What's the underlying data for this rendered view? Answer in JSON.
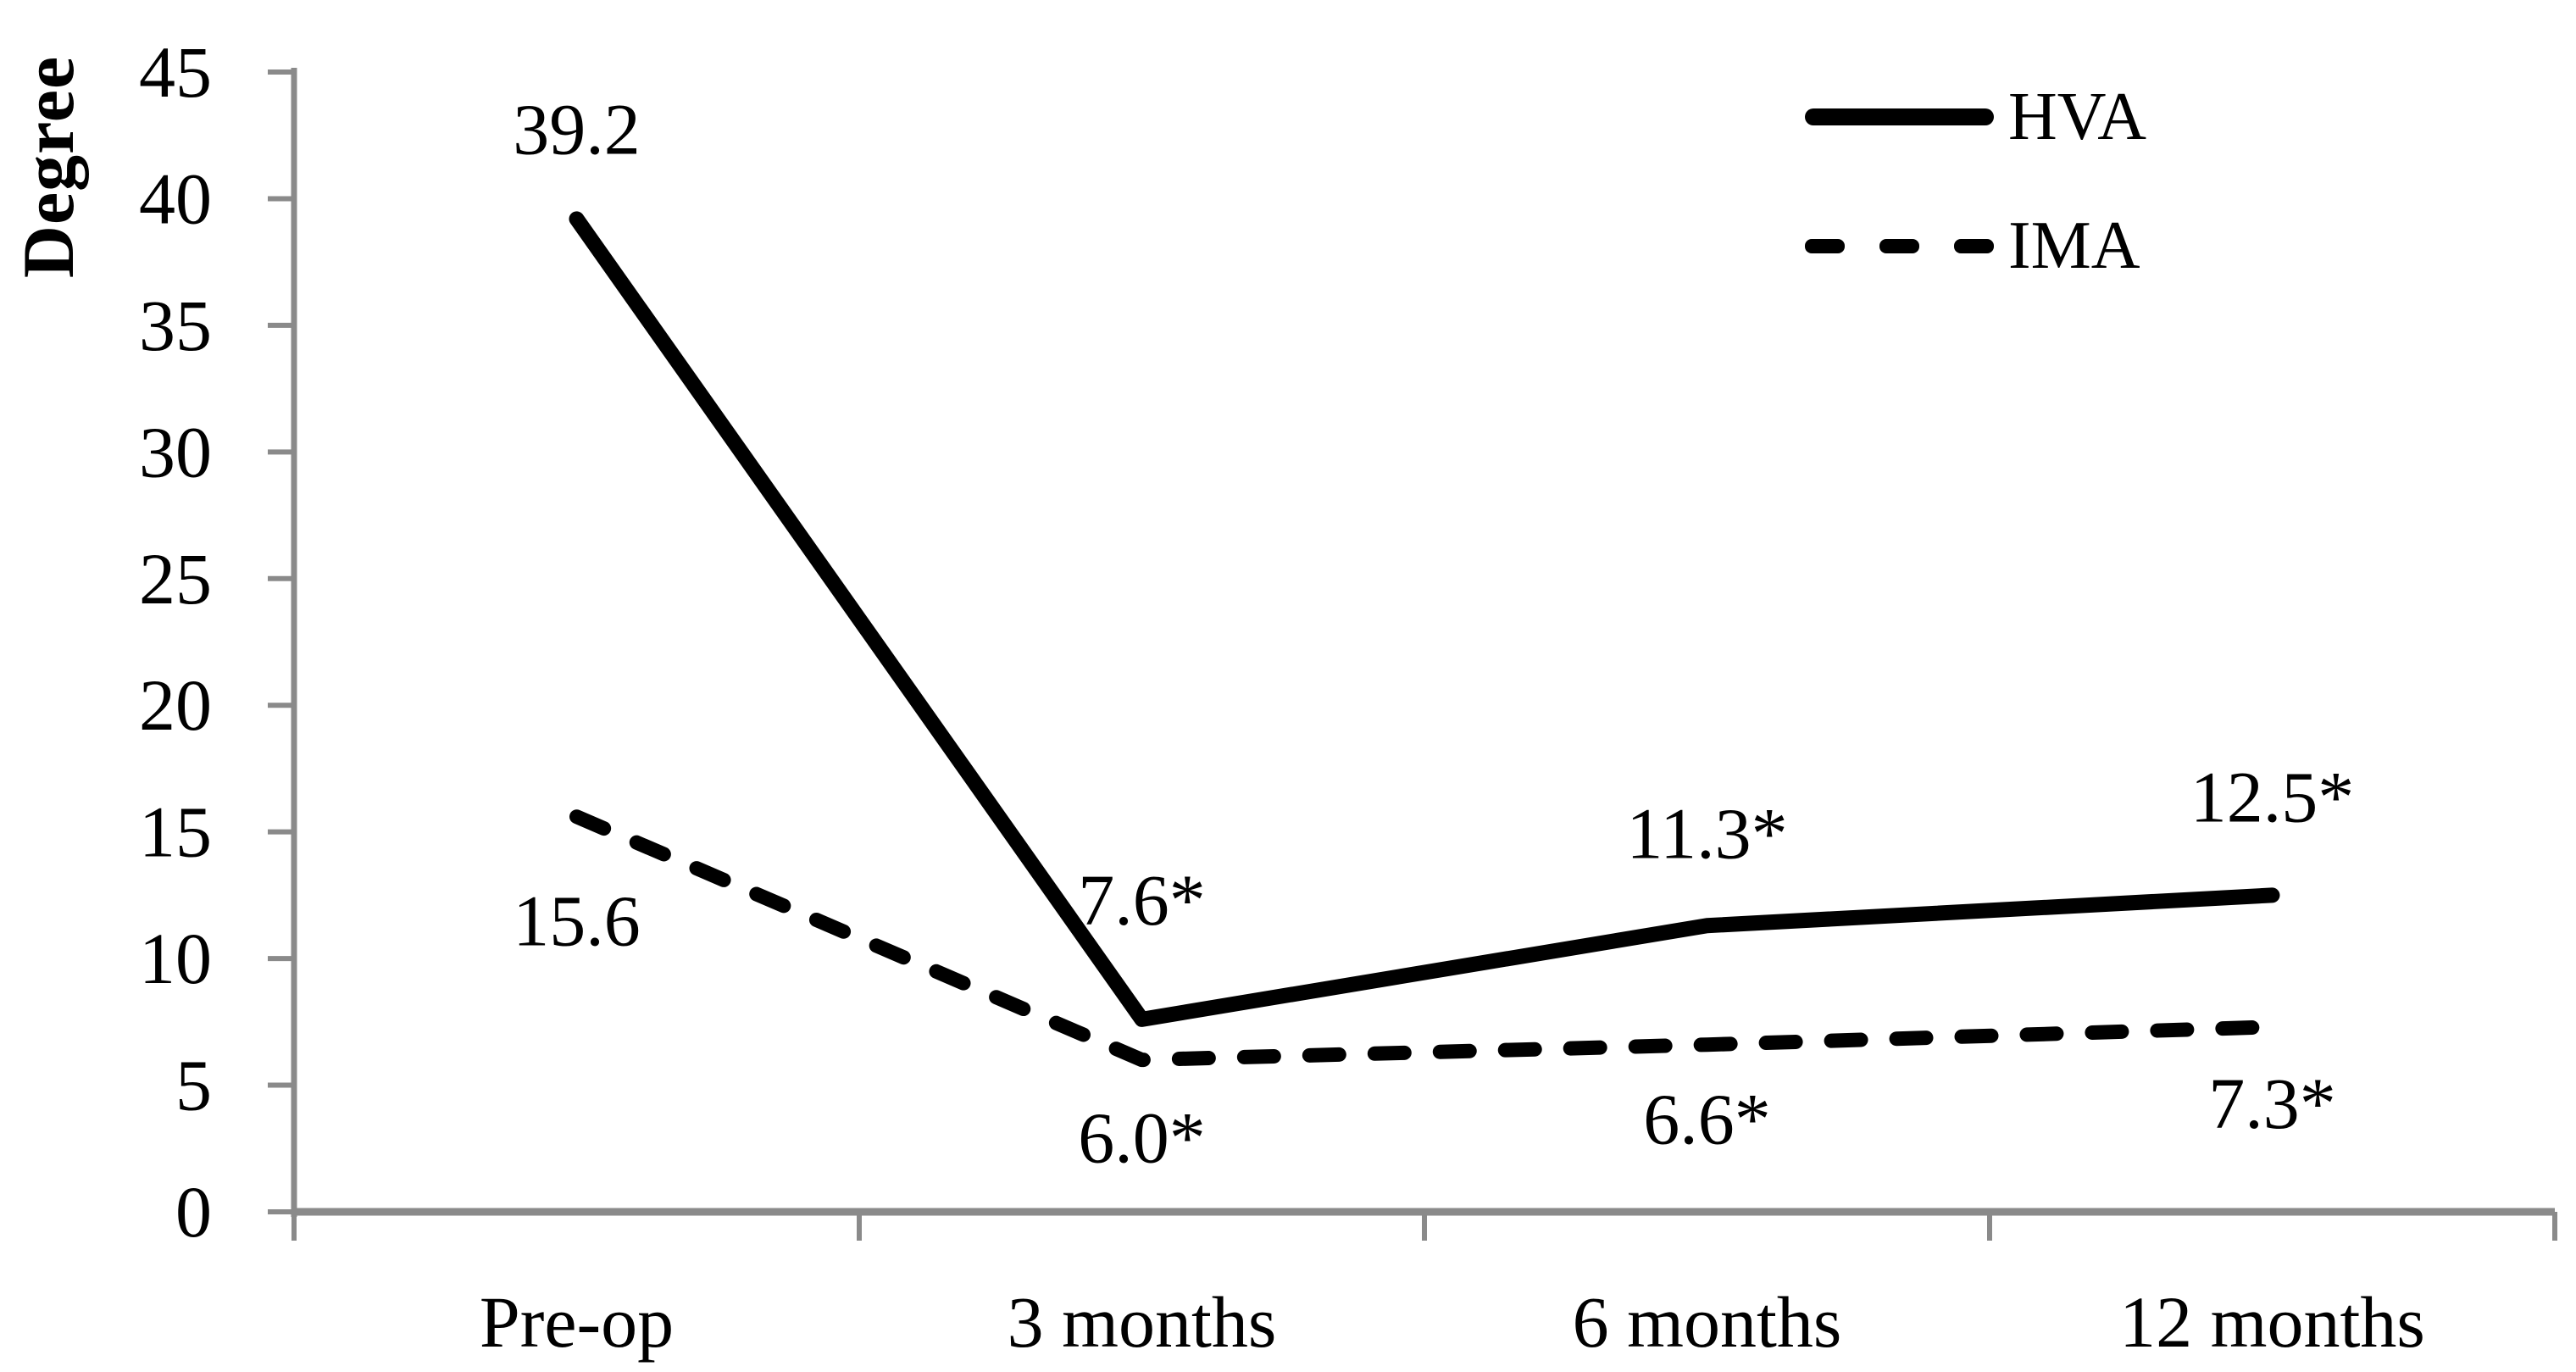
{
  "chart_data": {
    "type": "line",
    "title": "",
    "ylabel": "Degree",
    "xlabel": "",
    "categories": [
      "Pre-op",
      "3 months",
      "6 months",
      "12 months"
    ],
    "series": [
      {
        "name": "HVA",
        "line_style": "solid",
        "color": "#000000",
        "values": [
          39.2,
          7.6,
          11.3,
          12.5
        ],
        "data_labels": [
          "39.2",
          "7.6*",
          "11.3*",
          "12.5*"
        ],
        "label_position": "above"
      },
      {
        "name": "IMA",
        "line_style": "dashed",
        "color": "#000000",
        "values": [
          15.6,
          6.0,
          6.6,
          7.3
        ],
        "data_labels": [
          "15.6",
          "6.0*",
          "6.6*",
          "7.3*"
        ],
        "label_position": "below"
      }
    ],
    "ylim": [
      0,
      45
    ],
    "yticks": [
      0,
      5,
      10,
      15,
      20,
      25,
      30,
      35,
      40,
      45
    ],
    "grid": false,
    "legend_position": "top-right-inside",
    "colors": {
      "axis": "#8a8a8a",
      "text": "#000000",
      "background": "#ffffff"
    }
  }
}
